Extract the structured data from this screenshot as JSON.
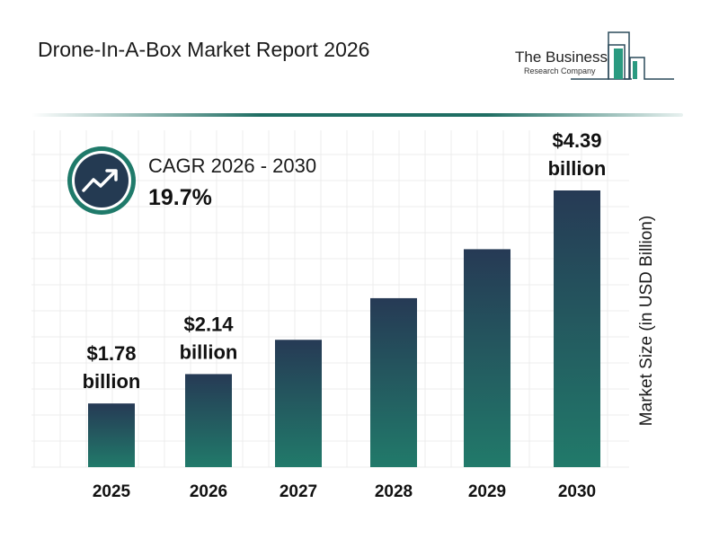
{
  "header": {
    "title": "Drone-In-A-Box Market Report 2026"
  },
  "logo": {
    "line1": "The Business",
    "line2": "Research Company"
  },
  "cagr": {
    "label": "CAGR 2026 - 2030",
    "value": "19.7%",
    "icon": "trending-up-icon"
  },
  "colors": {
    "bar_top": "#263a55",
    "bar_bottom": "#217a6a",
    "accent": "#1f7a6a",
    "icon_bg": "#243a52"
  },
  "chart_data": {
    "type": "bar",
    "title": "",
    "xlabel": "",
    "ylabel": "Market Size (in USD Billion)",
    "categories": [
      "2025",
      "2026",
      "2027",
      "2028",
      "2029",
      "2030"
    ],
    "values": [
      1.78,
      2.14,
      2.56,
      3.07,
      3.67,
      4.39
    ],
    "data_labels": [
      {
        "category": "2025",
        "amount": "$1.78",
        "unit": "billion"
      },
      {
        "category": "2026",
        "amount": "$2.14",
        "unit": "billion"
      },
      {
        "category": "2030",
        "amount": "$4.39",
        "unit": "billion"
      }
    ],
    "grid": true,
    "legend": "none"
  }
}
